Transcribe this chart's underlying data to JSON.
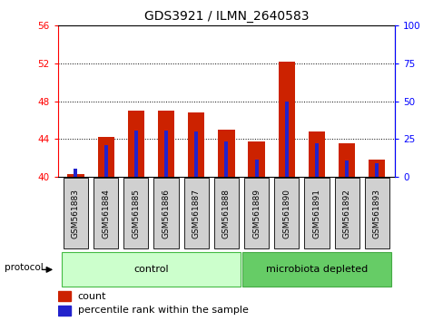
{
  "title": "GDS3921 / ILMN_2640583",
  "samples": [
    "GSM561883",
    "GSM561884",
    "GSM561885",
    "GSM561886",
    "GSM561887",
    "GSM561888",
    "GSM561889",
    "GSM561890",
    "GSM561891",
    "GSM561892",
    "GSM561893"
  ],
  "count_values": [
    40.3,
    44.2,
    47.0,
    47.0,
    46.8,
    45.0,
    43.7,
    52.2,
    44.8,
    43.5,
    41.8
  ],
  "percentile_values": [
    40.8,
    43.3,
    44.9,
    44.9,
    44.8,
    43.7,
    41.8,
    48.0,
    43.5,
    41.7,
    41.4
  ],
  "base_value": 40.0,
  "ylim_left": [
    40,
    56
  ],
  "ylim_right": [
    0,
    100
  ],
  "yticks_left": [
    40,
    44,
    48,
    52,
    56
  ],
  "yticks_right": [
    0,
    25,
    50,
    75,
    100
  ],
  "bar_color": "#cc2200",
  "percentile_color": "#2222cc",
  "bar_width": 0.55,
  "groups": [
    {
      "label": "control",
      "indices": [
        0,
        1,
        2,
        3,
        4,
        5
      ],
      "color": "#ccffcc",
      "border": "#44bb44"
    },
    {
      "label": "microbiota depleted",
      "indices": [
        6,
        7,
        8,
        9,
        10
      ],
      "color": "#66cc66",
      "border": "#44aa44"
    }
  ],
  "protocol_label": "protocol",
  "legend_count_label": "count",
  "legend_percentile_label": "percentile rank within the sample",
  "grid_color": "black",
  "sample_box_color": "#d0d0d0",
  "plot_bg": "#ffffff"
}
